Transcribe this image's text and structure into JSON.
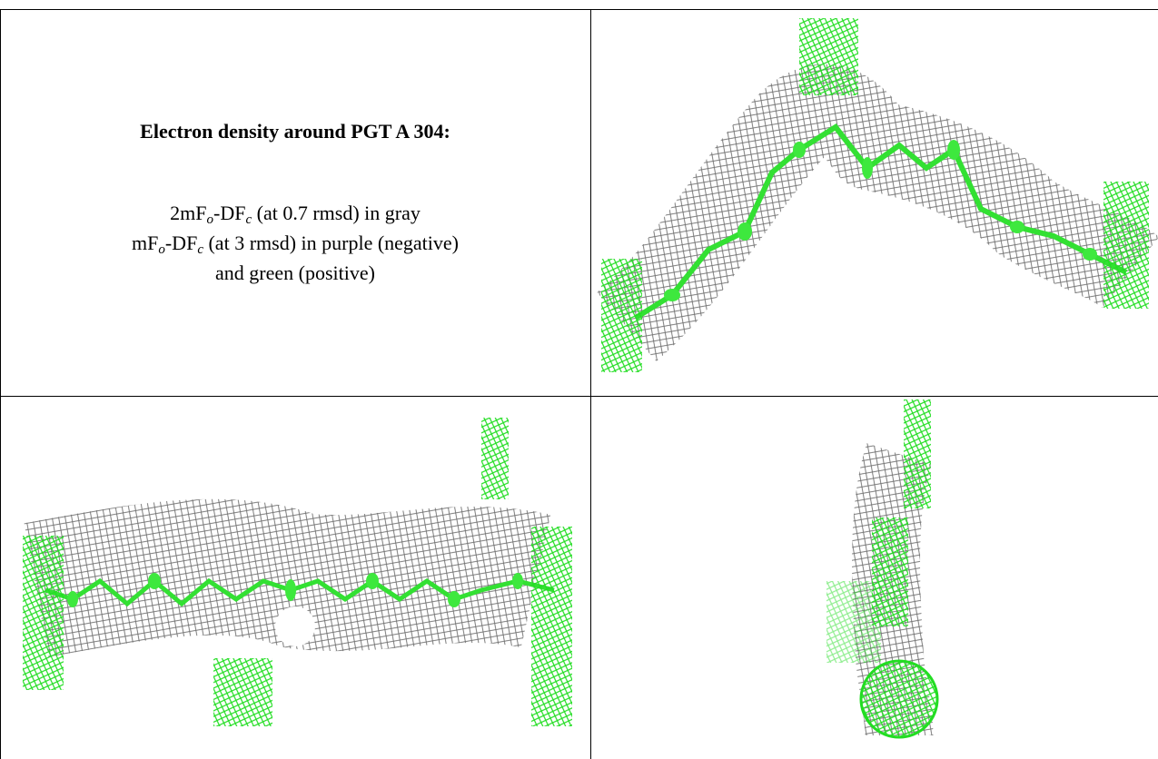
{
  "header": {
    "title": "Electron density around PGT A 304:"
  },
  "caption": {
    "lines": [
      [
        "2mF",
        "o",
        "-DF",
        "c",
        " (at 0.7 rmsd) in gray"
      ],
      [
        "mF",
        "o",
        "-DF",
        "c",
        " (at 3 rmsd) in purple (negative)"
      ],
      [
        "and green (positive)"
      ]
    ]
  }
}
